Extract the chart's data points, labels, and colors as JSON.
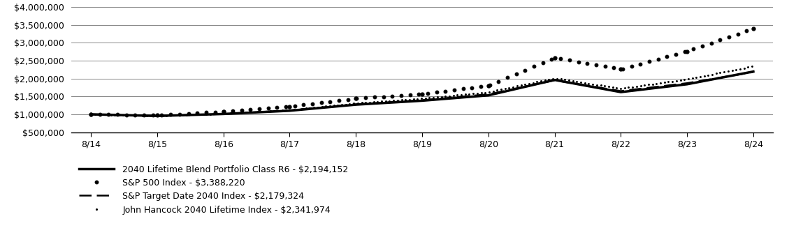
{
  "x_labels": [
    "8/14",
    "8/15",
    "8/16",
    "8/17",
    "8/18",
    "8/19",
    "8/20",
    "8/21",
    "8/22",
    "8/23",
    "8/24"
  ],
  "x_values": [
    0,
    1,
    2,
    3,
    4,
    5,
    6,
    7,
    8,
    9,
    10
  ],
  "series": {
    "blend": {
      "label": "2040 Lifetime Blend Portfolio Class R6 - $2,194,152",
      "color": "#000000",
      "linewidth": 2.5,
      "linestyle": "solid",
      "values": [
        1000000,
        955000,
        1010000,
        1100000,
        1270000,
        1380000,
        1530000,
        1960000,
        1620000,
        1840000,
        2194152
      ]
    },
    "sp500": {
      "label": "S&P 500 Index - $3,388,220",
      "color": "#000000",
      "linewidth": 2.2,
      "linestyle": "heavy_dot",
      "values": [
        1000000,
        975000,
        1075000,
        1220000,
        1440000,
        1570000,
        1800000,
        2580000,
        2260000,
        2760000,
        3388220
      ]
    },
    "sp_target": {
      "label": "S&P Target Date 2040 Index - $2,179,324",
      "color": "#000000",
      "linewidth": 1.8,
      "linestyle": "dashed",
      "values": [
        1000000,
        955000,
        1010000,
        1110000,
        1280000,
        1395000,
        1560000,
        1950000,
        1650000,
        1870000,
        2179324
      ]
    },
    "jh_index": {
      "label": "John Hancock 2040 Lifetime Index - $2,341,974",
      "color": "#000000",
      "linewidth": 1.5,
      "linestyle": "small_dot",
      "values": [
        1000000,
        960000,
        1020000,
        1120000,
        1310000,
        1440000,
        1620000,
        2010000,
        1720000,
        1980000,
        2341974
      ]
    }
  },
  "ylim": [
    500000,
    4000000
  ],
  "yticks": [
    500000,
    1000000,
    1500000,
    2000000,
    2500000,
    3000000,
    3500000,
    4000000
  ],
  "background_color": "#ffffff",
  "grid_color": "#888888",
  "tick_fontsize": 9,
  "legend_fontsize": 9
}
